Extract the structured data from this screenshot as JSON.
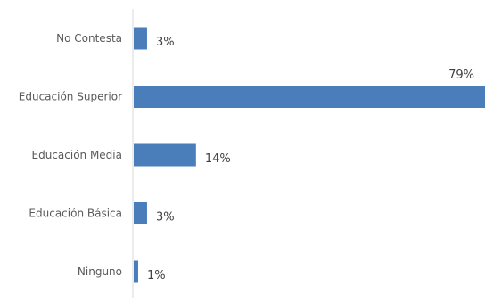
{
  "chart_data": {
    "type": "bar",
    "orientation": "horizontal",
    "categories": [
      "No Contesta",
      "Educación Superior",
      "Educación Media",
      "Educación Básica",
      "Ninguno"
    ],
    "values": [
      3,
      79,
      14,
      3,
      1
    ],
    "data_labels": [
      "3%",
      "79%",
      "14%",
      "3%",
      "1%"
    ],
    "unit": "%",
    "bar_color": "#4a7ebb",
    "axis_color": "#d9d9d9",
    "grid": false,
    "legend": "none",
    "xlim": [
      0,
      79
    ]
  }
}
